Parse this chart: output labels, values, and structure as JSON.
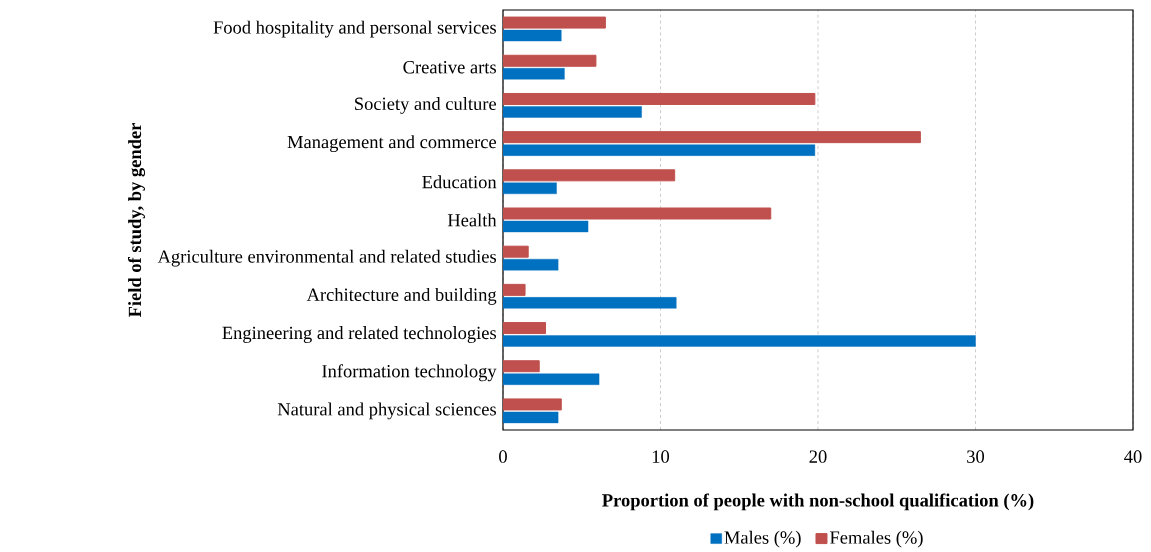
{
  "chart_data": {
    "type": "bar",
    "orientation": "horizontal",
    "xlabel": "Proportion of people with non-school qualification (%)",
    "ylabel": "Field of study, by gender",
    "categories": [
      "Food hospitality and personal services",
      "Creative arts",
      "Society and culture",
      "Management and commerce",
      "Education",
      "Health",
      "Agriculture environmental and related studies",
      "Architecture and building",
      "Engineering and related technologies",
      "Information technology",
      "Natural and physical sciences"
    ],
    "series": [
      {
        "name": "Males (%)",
        "color": "#0070c0",
        "values": [
          3.7,
          3.9,
          8.8,
          19.8,
          3.4,
          5.4,
          3.5,
          11.0,
          30.0,
          6.1,
          3.5
        ]
      },
      {
        "name": "Females (%)",
        "color": "#c0504d",
        "values": [
          6.5,
          5.9,
          19.8,
          26.5,
          10.9,
          17.0,
          1.6,
          1.4,
          2.7,
          2.3,
          3.7
        ]
      }
    ],
    "xlim": [
      0,
      40
    ],
    "xticks": [
      0,
      10,
      20,
      30,
      40
    ],
    "grid": "x",
    "legend": "bottom"
  }
}
